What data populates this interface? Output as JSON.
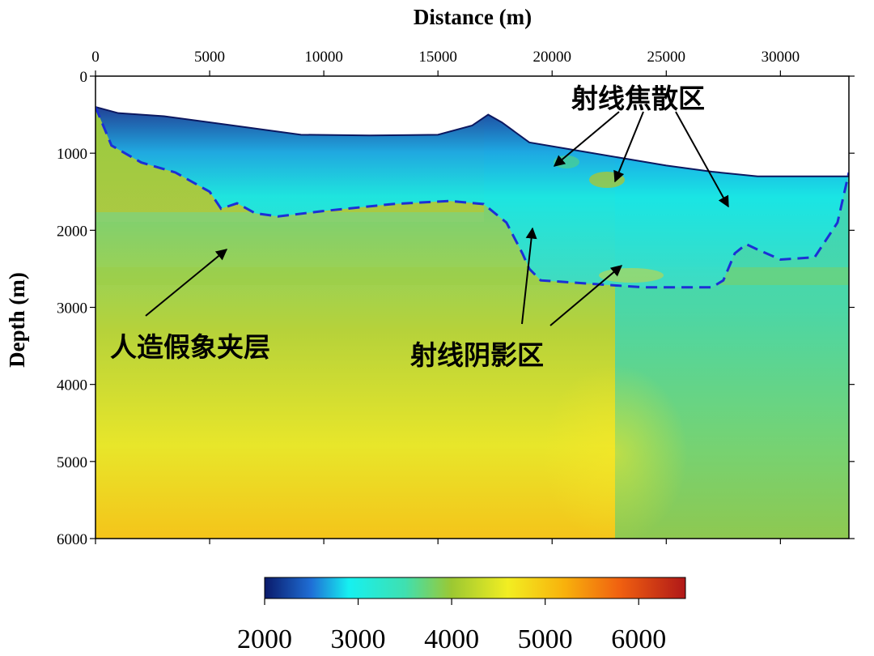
{
  "chart_data": {
    "type": "heatmap",
    "title": "",
    "xlabel": "Distance (m)",
    "ylabel": "Depth (m)",
    "xlim": [
      0,
      33000
    ],
    "ylim": [
      0,
      6000
    ],
    "y_inverted": true,
    "x_axis_position": "top",
    "x_ticks": [
      0,
      5000,
      10000,
      15000,
      20000,
      25000,
      30000
    ],
    "y_ticks": [
      0,
      1000,
      2000,
      3000,
      4000,
      5000,
      6000
    ],
    "colorbar": {
      "min": 2000,
      "max": 6500,
      "ticks": [
        2000,
        3000,
        4000,
        5000,
        6000
      ],
      "stops": [
        {
          "value": 2000,
          "color": "#0a1a6a"
        },
        {
          "value": 2500,
          "color": "#1f6fd6"
        },
        {
          "value": 2900,
          "color": "#16f0f0"
        },
        {
          "value": 3500,
          "color": "#3fe0b0"
        },
        {
          "value": 4000,
          "color": "#9cc832"
        },
        {
          "value": 4600,
          "color": "#f2ee22"
        },
        {
          "value": 5200,
          "color": "#f8b20c"
        },
        {
          "value": 5800,
          "color": "#f06010"
        },
        {
          "value": 6500,
          "color": "#b01818"
        }
      ]
    },
    "topography": [
      [
        0,
        400
      ],
      [
        1000,
        480
      ],
      [
        3000,
        520
      ],
      [
        6000,
        640
      ],
      [
        9000,
        760
      ],
      [
        12000,
        770
      ],
      [
        15000,
        760
      ],
      [
        16500,
        640
      ],
      [
        17200,
        500
      ],
      [
        17800,
        600
      ],
      [
        19000,
        860
      ],
      [
        21000,
        960
      ],
      [
        23000,
        1060
      ],
      [
        25000,
        1160
      ],
      [
        27000,
        1240
      ],
      [
        29000,
        1300
      ],
      [
        33000,
        1300
      ]
    ],
    "boundary_dashed": [
      [
        0,
        400
      ],
      [
        700,
        900
      ],
      [
        2000,
        1120
      ],
      [
        3500,
        1250
      ],
      [
        5000,
        1500
      ],
      [
        5500,
        1720
      ],
      [
        6200,
        1650
      ],
      [
        7000,
        1780
      ],
      [
        8000,
        1820
      ],
      [
        10000,
        1750
      ],
      [
        13000,
        1660
      ],
      [
        15500,
        1620
      ],
      [
        17000,
        1660
      ],
      [
        18000,
        1900
      ],
      [
        18700,
        2300
      ],
      [
        19000,
        2500
      ],
      [
        19500,
        2650
      ],
      [
        22000,
        2700
      ],
      [
        24000,
        2740
      ],
      [
        27000,
        2740
      ],
      [
        27500,
        2650
      ],
      [
        28000,
        2300
      ],
      [
        28500,
        2180
      ],
      [
        29000,
        2250
      ],
      [
        30000,
        2380
      ],
      [
        31500,
        2350
      ],
      [
        32500,
        1900
      ],
      [
        33000,
        1250
      ]
    ],
    "annotations": [
      {
        "id": "ray-focus",
        "text": "射线焦散区",
        "position": "top-right"
      },
      {
        "id": "ray-shadow",
        "text": "射线阴影区",
        "position": "center"
      },
      {
        "id": "artifact-layer",
        "text": "人造假象夹层",
        "position": "left"
      }
    ],
    "grid": false,
    "legend": "colorbar-bottom"
  }
}
